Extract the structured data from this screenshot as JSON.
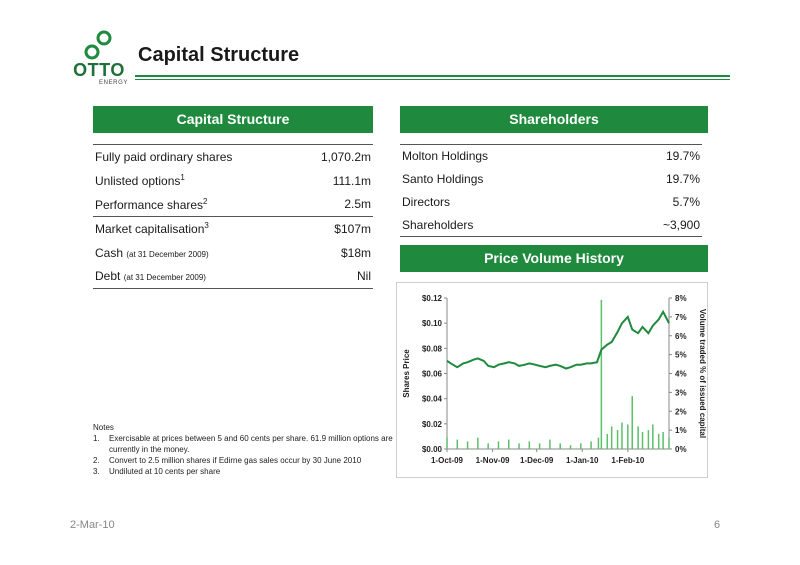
{
  "logo": {
    "word": "OTTO",
    "sub": "ENERGY"
  },
  "title": "Capital Structure",
  "capital": {
    "header": "Capital Structure",
    "rows": [
      {
        "label": "Fully paid ordinary shares",
        "sup": "",
        "note": "",
        "value": "1,070.2m"
      },
      {
        "label": "Unlisted options",
        "sup": "1",
        "note": "",
        "value": "111.1m"
      },
      {
        "label": "Performance shares",
        "sup": "2",
        "note": "",
        "value": "2.5m"
      },
      {
        "label": "Market capitalisation",
        "sup": "3",
        "note": "",
        "value": "$107m"
      },
      {
        "label": "Cash",
        "sup": "",
        "note": "(at 31 December 2009)",
        "value": "$18m"
      },
      {
        "label": "Debt",
        "sup": "",
        "note": "(at 31 December 2009)",
        "value": "Nil"
      }
    ]
  },
  "shareholders": {
    "header": "Shareholders",
    "rows": [
      {
        "label": "Molton Holdings",
        "value": "19.7%"
      },
      {
        "label": "Santo Holdings",
        "value": "19.7%"
      },
      {
        "label": "Directors",
        "value": "5.7%"
      },
      {
        "label": "Shareholders",
        "value": "~3,900"
      }
    ]
  },
  "price_header": "Price Volume History",
  "notes": {
    "title": "Notes",
    "items": [
      {
        "num": "1.",
        "text": "Exercisable at prices between 5 and 60 cents per share. 61.9 million options are currently in the money."
      },
      {
        "num": "2.",
        "text": "Convert to 2.5 million shares if Edirne gas sales occur by 30 June 2010"
      },
      {
        "num": "3.",
        "text": "Undiluted at 10 cents per share"
      }
    ]
  },
  "footer": {
    "date": "2-Mar-10",
    "page": "6"
  },
  "colors": {
    "accent": "#1f8a3d",
    "line": "#1f8a3d",
    "bars": "#5cbf6a"
  },
  "chart_data": {
    "type": "line",
    "title": "",
    "xlabel": "",
    "ylabel": "Shares Price",
    "y2label": "Volume traded % of issued capital",
    "ylim": [
      0,
      0.12
    ],
    "y2lim": [
      0,
      8
    ],
    "yticks": [
      "$0.00",
      "$0.02",
      "$0.04",
      "$0.06",
      "$0.08",
      "$0.10",
      "$0.12"
    ],
    "y2ticks": [
      "0%",
      "1%",
      "2%",
      "3%",
      "4%",
      "5%",
      "6%",
      "7%",
      "8%"
    ],
    "xticks": [
      "1-Oct-09",
      "1-Nov-09",
      "1-Dec-09",
      "1-Jan-10",
      "1-Feb-10"
    ],
    "legend": "none",
    "grid": false,
    "series": [
      {
        "type": "line",
        "x": [
          "2009-10-01",
          "2009-10-05",
          "2009-10-08",
          "2009-10-12",
          "2009-10-15",
          "2009-10-19",
          "2009-10-22",
          "2009-10-26",
          "2009-10-29",
          "2009-11-02",
          "2009-11-05",
          "2009-11-09",
          "2009-11-12",
          "2009-11-16",
          "2009-11-19",
          "2009-11-23",
          "2009-11-26",
          "2009-11-30",
          "2009-12-03",
          "2009-12-07",
          "2009-12-10",
          "2009-12-14",
          "2009-12-17",
          "2009-12-21",
          "2009-12-24",
          "2009-12-28",
          "2009-12-31",
          "2010-01-04",
          "2010-01-07",
          "2010-01-11",
          "2010-01-14",
          "2010-01-18",
          "2010-01-21",
          "2010-01-25",
          "2010-01-28",
          "2010-02-01",
          "2010-02-04",
          "2010-02-08",
          "2010-02-11",
          "2010-02-15",
          "2010-02-18",
          "2010-02-22",
          "2010-02-25",
          "2010-03-01"
        ],
        "y": [
          0.07,
          0.067,
          0.065,
          0.068,
          0.069,
          0.071,
          0.072,
          0.07,
          0.066,
          0.065,
          0.067,
          0.068,
          0.069,
          0.068,
          0.066,
          0.067,
          0.068,
          0.067,
          0.066,
          0.065,
          0.066,
          0.067,
          0.066,
          0.064,
          0.065,
          0.067,
          0.067,
          0.068,
          0.068,
          0.069,
          0.079,
          0.083,
          0.085,
          0.093,
          0.1,
          0.105,
          0.095,
          0.092,
          0.097,
          0.092,
          0.098,
          0.103,
          0.109,
          0.1
        ]
      },
      {
        "type": "bar",
        "axis": "y2",
        "x": [
          "2009-10-01",
          "2009-10-08",
          "2009-10-15",
          "2009-10-22",
          "2009-10-29",
          "2009-11-05",
          "2009-11-12",
          "2009-11-19",
          "2009-11-26",
          "2009-12-03",
          "2009-12-10",
          "2009-12-17",
          "2009-12-24",
          "2009-12-31",
          "2010-01-07",
          "2010-01-12",
          "2010-01-14",
          "2010-01-18",
          "2010-01-21",
          "2010-01-25",
          "2010-01-28",
          "2010-02-01",
          "2010-02-04",
          "2010-02-08",
          "2010-02-11",
          "2010-02-15",
          "2010-02-18",
          "2010-02-22",
          "2010-02-25",
          "2010-03-01"
        ],
        "y": [
          0.6,
          0.5,
          0.4,
          0.6,
          0.3,
          0.4,
          0.5,
          0.3,
          0.4,
          0.3,
          0.5,
          0.3,
          0.2,
          0.3,
          0.4,
          0.6,
          7.9,
          0.8,
          1.2,
          1.0,
          1.4,
          1.3,
          2.8,
          1.2,
          0.9,
          1.0,
          1.3,
          0.8,
          0.9,
          0.6
        ]
      }
    ]
  }
}
